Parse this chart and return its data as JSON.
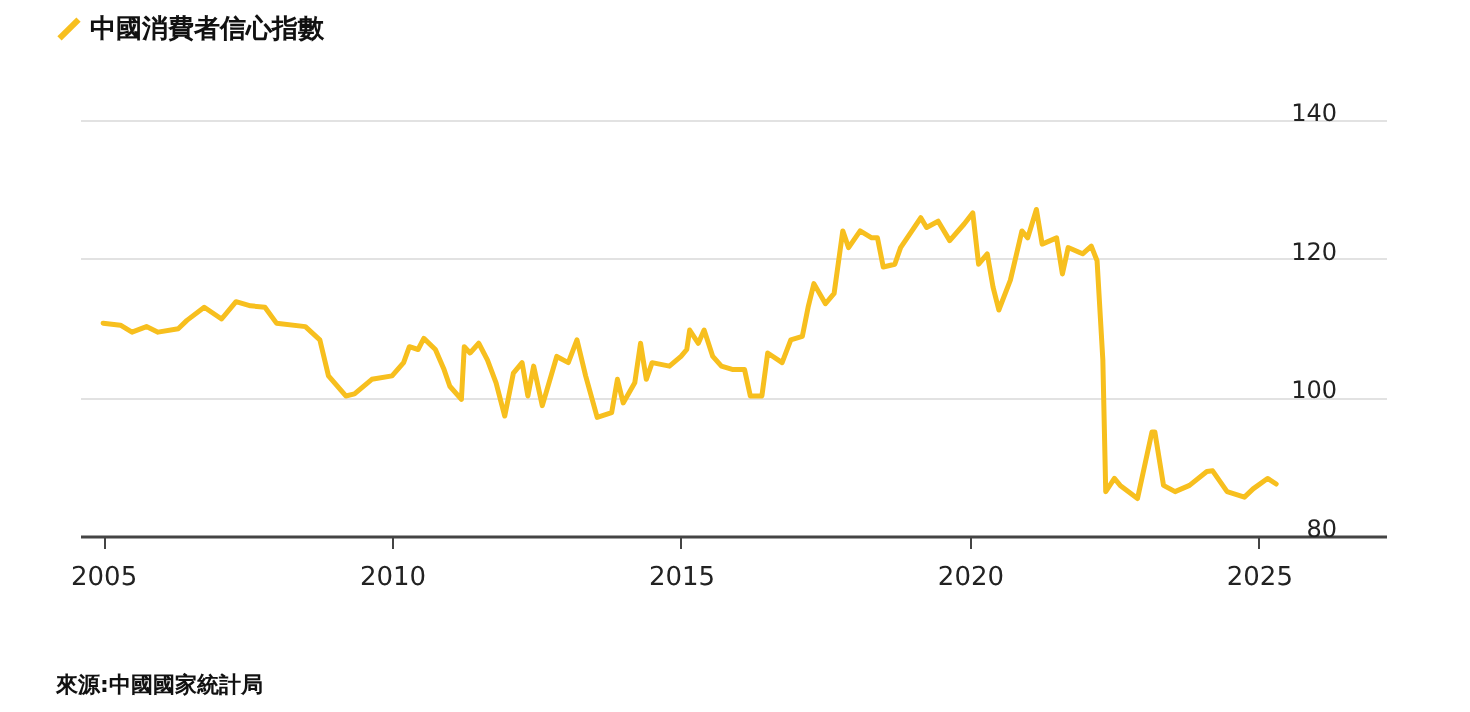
{
  "chart_data": {
    "type": "line",
    "annotations": [
      "來源:中國國家統計局"
    ],
    "x": [
      2005.0,
      2005.3,
      2005.5,
      2005.75,
      2005.95,
      2006.3,
      2006.45,
      2006.75,
      2007.05,
      2007.3,
      2007.55,
      2007.8,
      2008.0,
      2008.5,
      2008.75,
      2008.9,
      2009.2,
      2009.35,
      2009.65,
      2010.0,
      2010.2,
      2010.3,
      2010.45,
      2010.55,
      2010.75,
      2010.9,
      2011.0,
      2011.2,
      2011.25,
      2011.35,
      2011.5,
      2011.65,
      2011.8,
      2011.95,
      2012.1,
      2012.25,
      2012.35,
      2012.45,
      2012.6,
      2012.85,
      2013.05,
      2013.2,
      2013.35,
      2013.55,
      2013.8,
      2013.9,
      2014.0,
      2014.2,
      2014.3,
      2014.4,
      2014.5,
      2014.8,
      2015.0,
      2015.1,
      2015.15,
      2015.3,
      2015.4,
      2015.55,
      2015.7,
      2015.9,
      2016.1,
      2016.2,
      2016.4,
      2016.5,
      2016.75,
      2016.9,
      2017.1,
      2017.2,
      2017.3,
      2017.5,
      2017.65,
      2017.8,
      2017.9,
      2018.1,
      2018.3,
      2018.4,
      2018.5,
      2018.7,
      2018.8,
      2019.15,
      2019.25,
      2019.45,
      2019.65,
      2019.9,
      2020.05,
      2020.15,
      2020.3,
      2020.4,
      2020.5,
      2020.7,
      2020.9,
      2021.0,
      2021.15,
      2021.25,
      2021.5,
      2021.6,
      2021.7,
      2021.95,
      2022.1,
      2022.2,
      2022.3,
      2022.35,
      2022.5,
      2022.6,
      2022.9,
      2023.15,
      2023.2,
      2023.35,
      2023.55,
      2023.8,
      2024.1,
      2024.2,
      2024.45,
      2024.75,
      2024.9,
      2025.15,
      2025.3
    ],
    "series": [
      {
        "name": "中國消費者信心指數",
        "color": "#f7bf1e",
        "values": [
          110.7,
          110.4,
          109.4,
          110.2,
          109.4,
          109.9,
          111.1,
          113.0,
          111.3,
          113.8,
          113.2,
          113.0,
          110.7,
          110.2,
          108.3,
          103.1,
          100.2,
          100.5,
          102.6,
          103.1,
          105.0,
          107.3,
          106.9,
          108.5,
          106.9,
          104.0,
          101.6,
          99.7,
          107.3,
          106.4,
          107.8,
          105.4,
          102.1,
          97.3,
          103.5,
          105.0,
          100.2,
          104.5,
          98.8,
          105.9,
          105.0,
          108.3,
          103.1,
          97.1,
          97.8,
          102.6,
          99.2,
          102.1,
          107.8,
          102.6,
          105.0,
          104.5,
          105.9,
          106.9,
          109.7,
          107.8,
          109.7,
          105.9,
          104.5,
          104.0,
          104.0,
          100.2,
          100.2,
          106.4,
          105.0,
          108.3,
          108.8,
          113.0,
          116.4,
          113.5,
          115.0,
          124.0,
          121.6,
          124.0,
          123.0,
          123.0,
          118.8,
          119.2,
          121.6,
          125.9,
          124.5,
          125.4,
          122.6,
          125.0,
          126.6,
          119.2,
          120.7,
          115.9,
          112.6,
          116.9,
          124.0,
          123.0,
          127.1,
          122.1,
          123.0,
          117.8,
          121.6,
          120.7,
          121.8,
          119.7,
          105.4,
          86.4,
          88.3,
          87.3,
          85.4,
          95.0,
          95.0,
          87.3,
          86.4,
          87.3,
          89.3,
          89.4,
          86.4,
          85.6,
          86.8,
          88.3,
          87.5
        ]
      }
    ],
    "xlim": [
      2004.6,
      2027.2
    ],
    "xticks": [
      2005,
      2010,
      2015,
      2020,
      2025
    ],
    "ylim": [
      80,
      140
    ],
    "yticks": [
      80,
      100,
      120,
      140
    ],
    "grid": "y",
    "legend": "top left",
    "line_style": "solid"
  }
}
